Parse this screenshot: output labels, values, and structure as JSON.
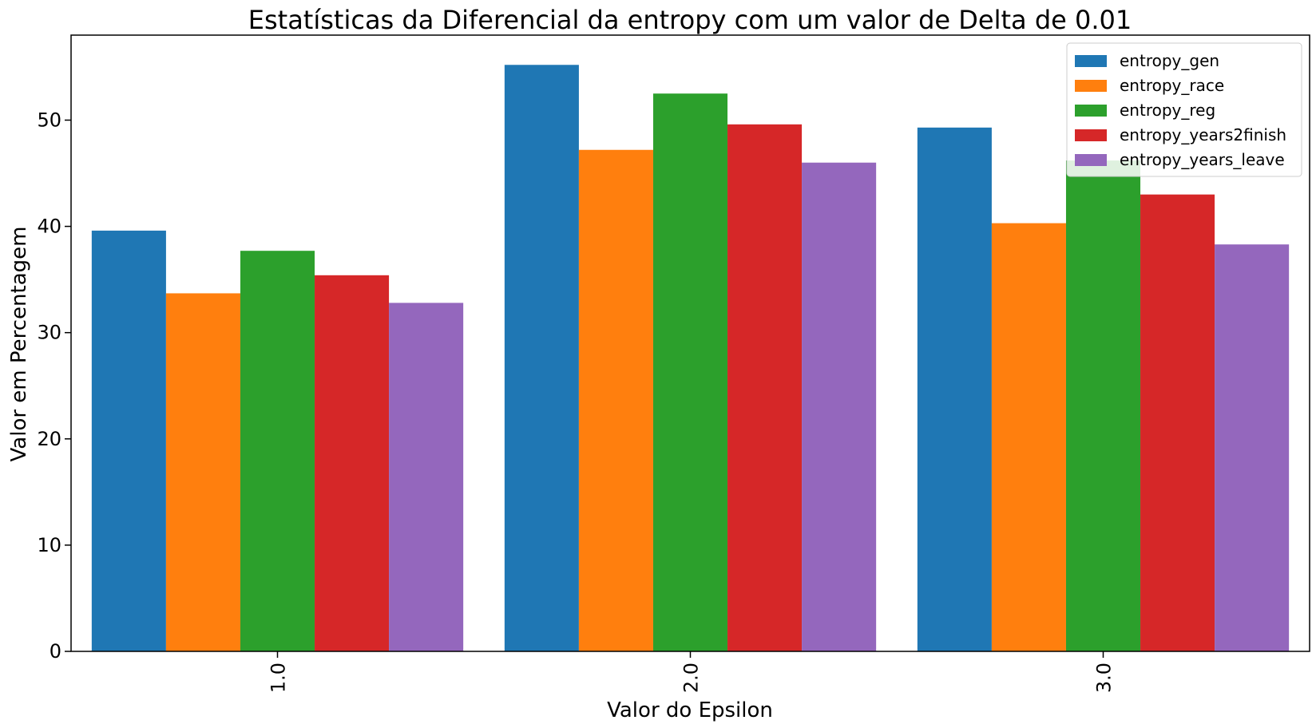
{
  "chart_data": {
    "type": "bar",
    "title": "Estatísticas da Diferencial da entropy com um valor de Delta de 0.01",
    "xlabel": "Valor do Epsilon",
    "ylabel": "Valor em Percentagem",
    "categories": [
      "1.0",
      "2.0",
      "3.0"
    ],
    "ylim": [
      0,
      58
    ],
    "yticks": [
      0,
      10,
      20,
      30,
      40,
      50
    ],
    "grid": false,
    "legend_position": "top-right",
    "series": [
      {
        "name": "entropy_gen",
        "color": "#1f77b4",
        "values": [
          39.6,
          55.2,
          49.3
        ]
      },
      {
        "name": "entropy_race",
        "color": "#ff7f0e",
        "values": [
          33.7,
          47.2,
          40.3
        ]
      },
      {
        "name": "entropy_reg",
        "color": "#2ca02c",
        "values": [
          37.7,
          52.5,
          46.2
        ]
      },
      {
        "name": "entropy_years2finish",
        "color": "#d62728",
        "values": [
          35.4,
          49.6,
          43.0
        ]
      },
      {
        "name": "entropy_years_leave",
        "color": "#9467bd",
        "values": [
          32.8,
          46.0,
          38.3
        ]
      }
    ]
  }
}
